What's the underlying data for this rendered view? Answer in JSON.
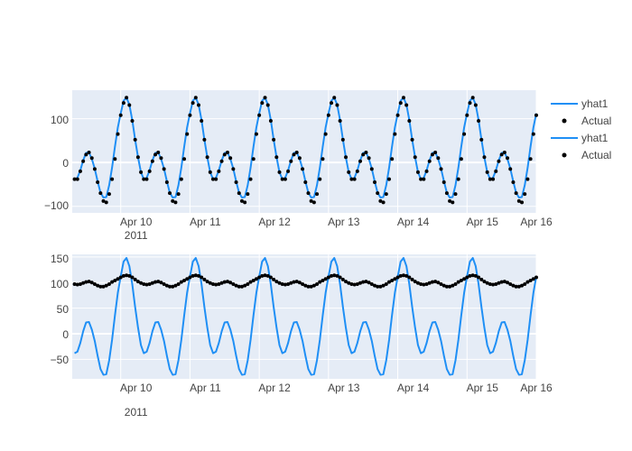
{
  "chart_data": [
    {
      "type": "line",
      "x_ticks": [
        "Apr 10",
        "Apr 11",
        "Apr 12",
        "Apr 13",
        "Apr 14",
        "Apr 15",
        "Apr 16"
      ],
      "x_year_label": "2011",
      "y_ticks": [
        "100",
        "0",
        "−100"
      ],
      "y_tick_values": [
        100,
        0,
        -100
      ],
      "ylim": [
        -115,
        165
      ],
      "xlim_days": [
        9.3,
        16.0
      ],
      "grid": true,
      "legend_placement": "right",
      "period_hours": 24,
      "series": [
        {
          "name": "yhat1",
          "mode": "lines",
          "color": "#1f8ff5",
          "hours": [
            0,
            1,
            2,
            3,
            4,
            5,
            6,
            7,
            8,
            9,
            10,
            11,
            12,
            13,
            14,
            15,
            16,
            17,
            18,
            19,
            20,
            21,
            22,
            23
          ],
          "values": [
            112,
            141,
            148,
            132,
            97,
            52,
            12,
            -22,
            -38,
            -35,
            -18,
            5,
            22,
            23,
            8,
            -14,
            -43,
            -69,
            -80,
            -79,
            -52,
            -12,
            36,
            80
          ]
        },
        {
          "name": "Actual",
          "mode": "markers",
          "color": "#000000",
          "hours": [
            0,
            1,
            2,
            3,
            4,
            5,
            6,
            7,
            8,
            9,
            10,
            11,
            12,
            13,
            14,
            15,
            16,
            17,
            18,
            19,
            20,
            21,
            22,
            23
          ],
          "values": [
            108,
            136,
            148,
            131,
            95,
            52,
            12,
            -22,
            -38,
            -38,
            -20,
            3,
            18,
            23,
            10,
            -15,
            -45,
            -70,
            -88,
            -91,
            -72,
            -38,
            8,
            65
          ]
        }
      ]
    },
    {
      "type": "line",
      "x_ticks": [
        "Apr 10",
        "Apr 11",
        "Apr 12",
        "Apr 13",
        "Apr 14",
        "Apr 15",
        "Apr 16"
      ],
      "x_year_label": "2011",
      "y_ticks": [
        "150",
        "100",
        "50",
        "0",
        "−50"
      ],
      "y_tick_values": [
        150,
        100,
        50,
        0,
        -50
      ],
      "ylim": [
        -88,
        155
      ],
      "xlim_days": [
        9.3,
        16.0
      ],
      "grid": true,
      "period_hours": 24,
      "series": [
        {
          "name": "yhat1",
          "mode": "lines",
          "color": "#1f8ff5",
          "hours": [
            0,
            1,
            2,
            3,
            4,
            5,
            6,
            7,
            8,
            9,
            10,
            11,
            12,
            13,
            14,
            15,
            16,
            17,
            18,
            19,
            20,
            21,
            22,
            23
          ],
          "values": [
            112,
            141,
            148,
            132,
            97,
            52,
            12,
            -22,
            -38,
            -35,
            -18,
            5,
            22,
            23,
            8,
            -14,
            -43,
            -69,
            -80,
            -79,
            -52,
            -12,
            36,
            80
          ]
        },
        {
          "name": "Actual",
          "mode": "markers",
          "color": "#000000",
          "hours": [
            0,
            1,
            2,
            3,
            4,
            5,
            6,
            7,
            8,
            9,
            10,
            11,
            12,
            13,
            14,
            15,
            16,
            17,
            18,
            19,
            20,
            21,
            22,
            23
          ],
          "values": [
            110,
            113,
            114,
            113,
            110,
            106,
            102,
            99,
            97,
            96,
            97,
            99,
            101,
            102,
            100,
            97,
            94,
            92,
            92,
            94,
            97,
            101,
            104,
            107
          ]
        }
      ]
    }
  ],
  "legend": {
    "items": [
      {
        "label": "yhat1",
        "kind": "line",
        "color": "#1f8ff5"
      },
      {
        "label": "Actual",
        "kind": "marker",
        "color": "#000000"
      },
      {
        "label": "yhat1",
        "kind": "line",
        "color": "#1f8ff5"
      },
      {
        "label": "Actual",
        "kind": "marker",
        "color": "#000000"
      }
    ]
  },
  "colors": {
    "plot_bg": "#e5ecf6",
    "grid": "#ffffff",
    "tick_text": "#444444"
  }
}
